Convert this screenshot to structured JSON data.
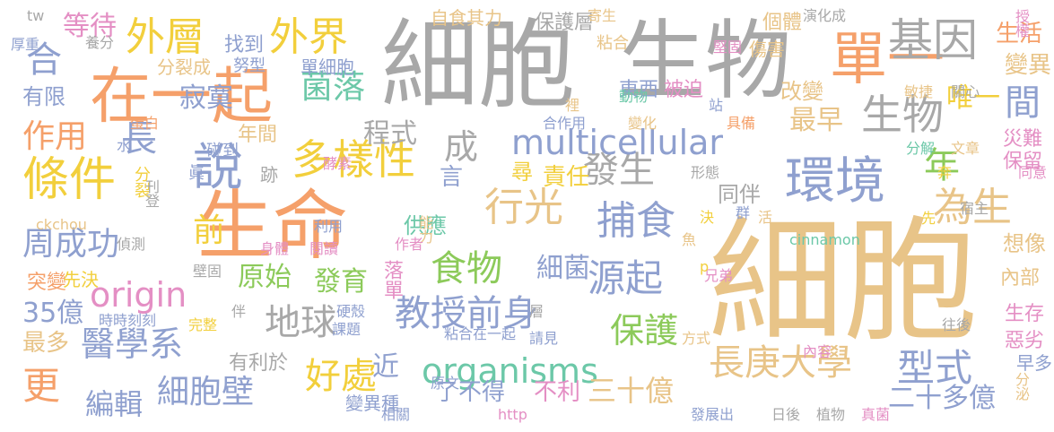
{
  "palette": {
    "gray": "#a8a8a8",
    "tan": "#e8c488",
    "orange": "#f5a06a",
    "green": "#8cca5a",
    "blue": "#8fa0cf",
    "pink": "#e48fc4",
    "teal": "#6cc8a8",
    "yellow": "#f2cf3c"
  },
  "words": [
    {
      "text": "細胞",
      "color": "tan"
    },
    {
      "text": "細胞",
      "color": "gray"
    },
    {
      "text": "生物",
      "color": "gray"
    },
    {
      "text": "生命",
      "color": "orange"
    },
    {
      "text": "在一起",
      "color": "orange"
    },
    {
      "text": "單一",
      "color": "orange"
    },
    {
      "text": "說",
      "color": "blue"
    },
    {
      "text": "環境",
      "color": "blue"
    },
    {
      "text": "基因",
      "color": "gray"
    },
    {
      "text": "外層",
      "color": "yellow"
    },
    {
      "text": "外界",
      "color": "yellow"
    },
    {
      "text": "條件",
      "color": "yellow"
    },
    {
      "text": "多樣性",
      "color": "yellow"
    },
    {
      "text": "捕食",
      "color": "blue"
    },
    {
      "text": "行光",
      "color": "tan"
    },
    {
      "text": "源起",
      "color": "blue"
    },
    {
      "text": "發生",
      "color": "gray"
    },
    {
      "text": "食物",
      "color": "green"
    },
    {
      "text": "地球",
      "color": "gray"
    },
    {
      "text": "教授前身",
      "color": "blue"
    },
    {
      "text": "好處",
      "color": "yellow"
    },
    {
      "text": "型式",
      "color": "blue"
    },
    {
      "text": "長庚大學",
      "color": "tan"
    },
    {
      "text": "organisms",
      "color": "teal"
    },
    {
      "text": "multicellular",
      "color": "blue"
    },
    {
      "text": "origin",
      "color": "pink"
    },
    {
      "text": "醫學系",
      "color": "blue"
    },
    {
      "text": "細胞壁",
      "color": "blue"
    },
    {
      "text": "保護",
      "color": "green"
    },
    {
      "text": "生物",
      "color": "gray"
    },
    {
      "text": "為生",
      "color": "tan"
    },
    {
      "text": "年",
      "color": "green"
    },
    {
      "text": "周成功",
      "color": "blue"
    },
    {
      "text": "編輯",
      "color": "blue"
    },
    {
      "text": "更",
      "color": "orange"
    },
    {
      "text": "作用",
      "color": "orange"
    },
    {
      "text": "合",
      "color": "blue"
    },
    {
      "text": "等待",
      "color": "pink"
    },
    {
      "text": "寂寞",
      "color": "blue"
    },
    {
      "text": "長",
      "color": "blue"
    },
    {
      "text": "菌落",
      "color": "teal"
    },
    {
      "text": "前",
      "color": "yellow"
    },
    {
      "text": "程式",
      "color": "gray"
    },
    {
      "text": "成",
      "color": "gray"
    },
    {
      "text": "原始",
      "color": "green"
    },
    {
      "text": "發育",
      "color": "green"
    },
    {
      "text": "細菌",
      "color": "blue"
    },
    {
      "text": "35億",
      "color": "blue"
    },
    {
      "text": "最多",
      "color": "tan"
    },
    {
      "text": "三十億",
      "color": "tan"
    },
    {
      "text": "二十多億",
      "color": "blue"
    },
    {
      "text": "生活",
      "color": "orange"
    },
    {
      "text": "間",
      "color": "blue"
    },
    {
      "text": "唯一",
      "color": "yellow"
    },
    {
      "text": "最早",
      "color": "tan"
    },
    {
      "text": "改變",
      "color": "tan"
    },
    {
      "text": "年間",
      "color": "tan"
    },
    {
      "text": "尋",
      "color": "yellow"
    },
    {
      "text": "責任",
      "color": "yellow"
    },
    {
      "text": "同伴",
      "color": "gray"
    },
    {
      "text": "跡",
      "color": "gray"
    },
    {
      "text": "言",
      "color": "blue"
    },
    {
      "text": "供應",
      "color": "teal"
    },
    {
      "text": "近",
      "color": "blue"
    },
    {
      "text": "了不得",
      "color": "blue"
    },
    {
      "text": "不利",
      "color": "pink"
    },
    {
      "text": "有限",
      "color": "blue"
    },
    {
      "text": "變異",
      "color": "tan"
    },
    {
      "text": "找到",
      "color": "blue"
    },
    {
      "text": "分裂成",
      "color": "tan"
    },
    {
      "text": "單細胞",
      "color": "blue"
    },
    {
      "text": "保護層",
      "color": "gray"
    },
    {
      "text": "粘合",
      "color": "tan"
    },
    {
      "text": "個體",
      "color": "tan"
    },
    {
      "text": "傷害",
      "color": "tan"
    },
    {
      "text": "東西",
      "color": "blue"
    },
    {
      "text": "被迫",
      "color": "pink"
    },
    {
      "text": "突變",
      "color": "orange"
    },
    {
      "text": "先決",
      "color": "yellow"
    },
    {
      "text": "有利於",
      "color": "gray"
    },
    {
      "text": "內部",
      "color": "tan"
    },
    {
      "text": "生存",
      "color": "pink"
    },
    {
      "text": "惡劣",
      "color": "pink"
    },
    {
      "text": "災難",
      "color": "pink"
    },
    {
      "text": "保留",
      "color": "pink"
    },
    {
      "text": "想像",
      "color": "tan"
    },
    {
      "text": "早多",
      "color": "blue"
    },
    {
      "text": "落單",
      "color": "pink"
    },
    {
      "text": "變異種",
      "color": "blue"
    },
    {
      "text": "自食其力",
      "color": "tan"
    },
    {
      "text": "tw",
      "color": "gray"
    },
    {
      "text": "厚重",
      "color": "blue"
    },
    {
      "text": "養分",
      "color": "gray"
    },
    {
      "text": "蛋白",
      "color": "orange"
    },
    {
      "text": "水",
      "color": "blue"
    },
    {
      "text": "分裂",
      "color": "yellow"
    },
    {
      "text": "ckchou",
      "color": "tan"
    },
    {
      "text": "刊登",
      "color": "gray"
    },
    {
      "text": "偵測",
      "color": "gray"
    },
    {
      "text": "碰到",
      "color": "blue"
    },
    {
      "text": "酵素",
      "color": "pink"
    },
    {
      "text": "cinnamon",
      "color": "teal"
    },
    {
      "text": "分解",
      "color": "teal"
    },
    {
      "text": "文章",
      "color": "tan"
    },
    {
      "text": "合作用",
      "color": "blue"
    },
    {
      "text": "變化",
      "color": "tan"
    },
    {
      "text": "寄生",
      "color": "tan"
    },
    {
      "text": "演化成",
      "color": "gray"
    },
    {
      "text": "授權",
      "color": "pink"
    },
    {
      "text": "堅固",
      "color": "pink"
    },
    {
      "text": "敏捷",
      "color": "tan"
    },
    {
      "text": "關心",
      "color": "gray"
    },
    {
      "text": "具備",
      "color": "orange"
    },
    {
      "text": "同意",
      "color": "pink"
    },
    {
      "text": "宿主",
      "color": "gray"
    },
    {
      "text": "利用",
      "color": "blue"
    },
    {
      "text": "能力",
      "color": "tan"
    },
    {
      "text": "身體",
      "color": "pink"
    },
    {
      "text": "閱讀",
      "color": "pink"
    },
    {
      "text": "作者",
      "color": "pink"
    },
    {
      "text": "群",
      "color": "blue"
    },
    {
      "text": "活",
      "color": "tan"
    },
    {
      "text": "決",
      "color": "yellow"
    },
    {
      "text": "壁固",
      "color": "gray"
    },
    {
      "text": "完整",
      "color": "yellow"
    },
    {
      "text": "時時刻刻",
      "color": "blue"
    },
    {
      "text": "伴",
      "color": "gray"
    },
    {
      "text": "硬殼",
      "color": "blue"
    },
    {
      "text": "課題",
      "color": "blue"
    },
    {
      "text": "粘合在一起",
      "color": "blue"
    },
    {
      "text": "請見",
      "color": "blue"
    },
    {
      "text": "兄弟",
      "color": "pink"
    },
    {
      "text": "方式",
      "color": "tan"
    },
    {
      "text": "往後",
      "color": "gray"
    },
    {
      "text": "內容",
      "color": "pink"
    },
    {
      "text": "原文",
      "color": "blue"
    },
    {
      "text": "相關",
      "color": "blue"
    },
    {
      "text": "http",
      "color": "pink"
    },
    {
      "text": "發展出",
      "color": "blue"
    },
    {
      "text": "日後",
      "color": "gray"
    },
    {
      "text": "植物",
      "color": "gray"
    },
    {
      "text": "真菌",
      "color": "pink"
    },
    {
      "text": "分泌",
      "color": "tan"
    },
    {
      "text": "魚",
      "color": "tan"
    },
    {
      "text": "p",
      "color": "yellow"
    },
    {
      "text": "形態",
      "color": "gray"
    },
    {
      "text": "奔",
      "color": "yellow"
    },
    {
      "text": "先",
      "color": "yellow"
    },
    {
      "text": "裡",
      "color": "tan"
    },
    {
      "text": "動物",
      "color": "teal"
    },
    {
      "text": "站",
      "color": "blue"
    },
    {
      "text": "眞",
      "color": "blue"
    },
    {
      "text": "層",
      "color": "gray"
    },
    {
      "text": "努型",
      "color": "blue"
    }
  ]
}
